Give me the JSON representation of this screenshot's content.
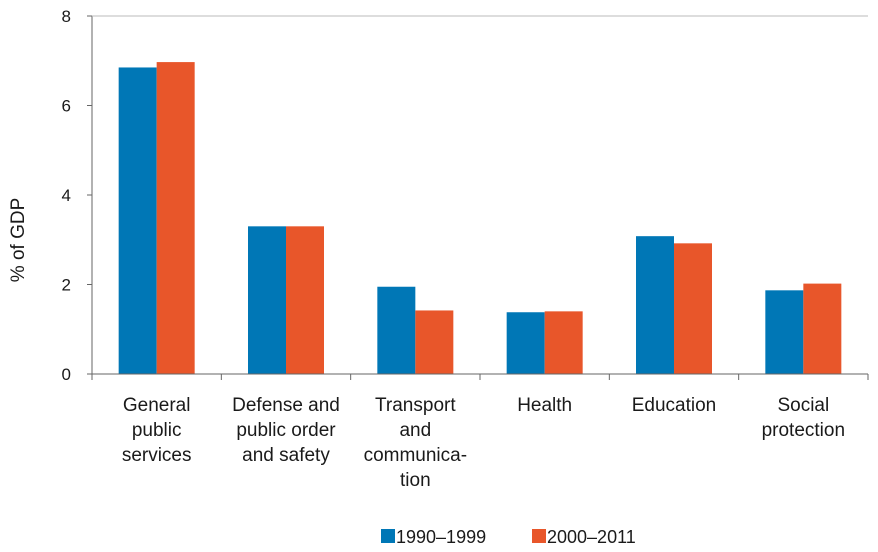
{
  "chart_data": {
    "type": "bar",
    "title": "",
    "xlabel": "",
    "ylabel": "% of GDP",
    "ylim": [
      0,
      8
    ],
    "yticks": [
      "0",
      "2",
      "4",
      "6",
      "8"
    ],
    "grid": false,
    "legend_position": "bottom",
    "categories": [
      [
        "General",
        "public",
        "services"
      ],
      [
        "Defense and",
        "public order",
        "and safety"
      ],
      [
        "Transport",
        "and",
        "communica-",
        "tion"
      ],
      [
        "Health"
      ],
      [
        "Education"
      ],
      [
        "Social",
        "protection"
      ]
    ],
    "series": [
      {
        "name": "1990–1999",
        "color": "#0077b6",
        "values": [
          6.85,
          3.3,
          1.95,
          1.38,
          3.08,
          1.87
        ]
      },
      {
        "name": "2000–2011",
        "color": "#e8562a",
        "values": [
          6.97,
          3.3,
          1.42,
          1.4,
          2.92,
          2.02
        ]
      }
    ]
  }
}
